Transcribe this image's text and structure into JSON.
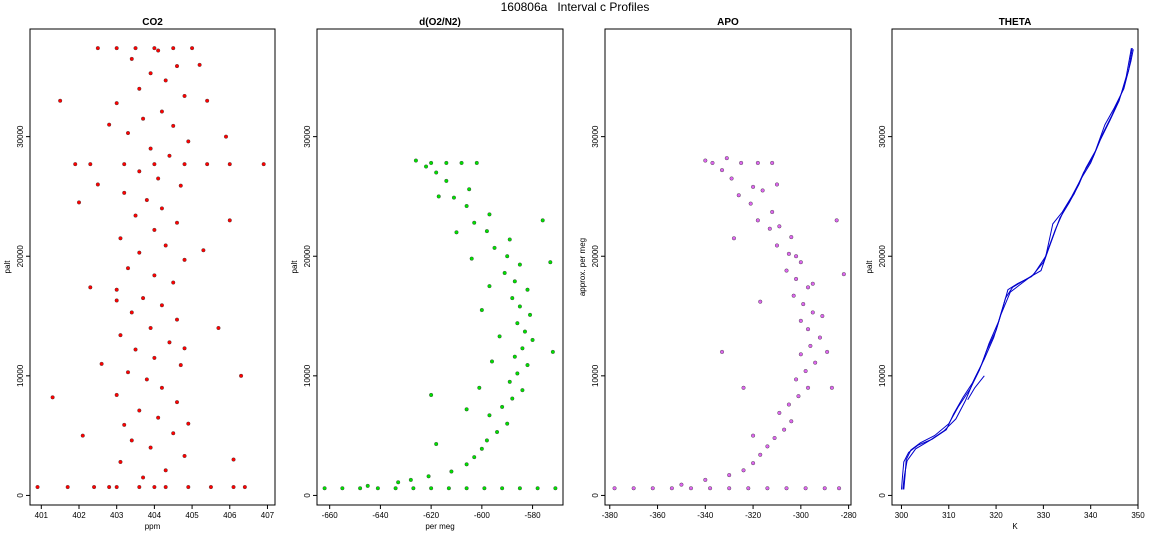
{
  "figure": {
    "title": "160806a   Interval c Profiles"
  },
  "chart_data": [
    {
      "type": "scatter",
      "title": "CO2",
      "xlabel": "ppm",
      "ylabel": "palt",
      "xlim": [
        400.7,
        407.2
      ],
      "ylim": [
        -800,
        39000
      ],
      "xticks": [
        401,
        402,
        403,
        404,
        405,
        406,
        407
      ],
      "yticks": [
        0,
        10000,
        20000,
        30000
      ],
      "color": "#ff0000",
      "points": [
        [
          403.0,
          700
        ],
        [
          403.6,
          700
        ],
        [
          404.3,
          700
        ],
        [
          404.9,
          700
        ],
        [
          402.4,
          700
        ],
        [
          405.5,
          700
        ],
        [
          401.7,
          700
        ],
        [
          406.1,
          700
        ],
        [
          402.8,
          700
        ],
        [
          404.0,
          700
        ],
        [
          400.9,
          700
        ],
        [
          406.4,
          700
        ],
        [
          403.7,
          1500
        ],
        [
          404.3,
          2100
        ],
        [
          403.1,
          2800
        ],
        [
          404.8,
          3300
        ],
        [
          403.9,
          4000
        ],
        [
          403.4,
          4600
        ],
        [
          404.5,
          5200
        ],
        [
          403.2,
          5900
        ],
        [
          404.1,
          6500
        ],
        [
          403.6,
          7100
        ],
        [
          404.6,
          7800
        ],
        [
          403.0,
          8400
        ],
        [
          404.2,
          9000
        ],
        [
          403.8,
          9700
        ],
        [
          403.3,
          10300
        ],
        [
          404.7,
          10900
        ],
        [
          404.0,
          11500
        ],
        [
          403.5,
          12200
        ],
        [
          404.4,
          12800
        ],
        [
          403.1,
          13400
        ],
        [
          403.9,
          14000
        ],
        [
          404.6,
          14700
        ],
        [
          403.4,
          15300
        ],
        [
          404.2,
          15900
        ],
        [
          403.7,
          16500
        ],
        [
          403.0,
          17200
        ],
        [
          404.5,
          17800
        ],
        [
          404.0,
          18400
        ],
        [
          403.3,
          19000
        ],
        [
          404.8,
          19700
        ],
        [
          403.6,
          20300
        ],
        [
          404.3,
          20900
        ],
        [
          403.1,
          21500
        ],
        [
          404.0,
          22200
        ],
        [
          404.6,
          22800
        ],
        [
          403.5,
          23400
        ],
        [
          404.2,
          24000
        ],
        [
          403.8,
          24700
        ],
        [
          403.2,
          25300
        ],
        [
          404.7,
          25900
        ],
        [
          404.1,
          26500
        ],
        [
          403.6,
          27100
        ],
        [
          402.3,
          27700
        ],
        [
          403.2,
          27700
        ],
        [
          404.0,
          27700
        ],
        [
          404.8,
          27700
        ],
        [
          405.4,
          27700
        ],
        [
          401.9,
          27700
        ],
        [
          406.0,
          27700
        ],
        [
          406.9,
          27700
        ],
        [
          404.4,
          28400
        ],
        [
          403.9,
          29000
        ],
        [
          404.9,
          29600
        ],
        [
          403.3,
          30300
        ],
        [
          404.5,
          30900
        ],
        [
          403.7,
          31500
        ],
        [
          404.2,
          32100
        ],
        [
          403.0,
          32800
        ],
        [
          404.8,
          33400
        ],
        [
          403.6,
          34000
        ],
        [
          404.3,
          34700
        ],
        [
          403.9,
          35300
        ],
        [
          404.6,
          35900
        ],
        [
          403.4,
          36500
        ],
        [
          404.1,
          37200
        ],
        [
          403.0,
          37400
        ],
        [
          403.5,
          37400
        ],
        [
          404.0,
          37400
        ],
        [
          404.5,
          37400
        ],
        [
          405.0,
          37400
        ],
        [
          402.5,
          37400
        ],
        [
          402.0,
          24500
        ],
        [
          402.3,
          17400
        ],
        [
          406.0,
          23000
        ],
        [
          405.7,
          14000
        ],
        [
          405.9,
          30000
        ],
        [
          401.3,
          8200
        ],
        [
          406.3,
          10000
        ],
        [
          402.1,
          5000
        ],
        [
          405.4,
          33000
        ],
        [
          401.5,
          33000
        ],
        [
          405.2,
          36000
        ],
        [
          402.6,
          11000
        ],
        [
          406.1,
          3000
        ],
        [
          403.0,
          16300
        ],
        [
          404.8,
          12300
        ],
        [
          402.8,
          31000
        ],
        [
          405.3,
          20500
        ],
        [
          402.5,
          26000
        ],
        [
          404.9,
          6000
        ]
      ]
    },
    {
      "type": "scatter",
      "title": "d(O2/N2)",
      "xlabel": "per meg",
      "ylabel": "palt",
      "xlim": [
        -665,
        -568
      ],
      "ylim": [
        -800,
        39000
      ],
      "xticks": [
        -660,
        -640,
        -620,
        -600,
        -580
      ],
      "yticks": [
        0,
        10000,
        20000,
        30000
      ],
      "color": "#00e000",
      "points": [
        [
          -662,
          600
        ],
        [
          -655,
          600
        ],
        [
          -648,
          600
        ],
        [
          -641,
          600
        ],
        [
          -634,
          600
        ],
        [
          -627,
          600
        ],
        [
          -620,
          600
        ],
        [
          -613,
          600
        ],
        [
          -606,
          600
        ],
        [
          -599,
          600
        ],
        [
          -592,
          600
        ],
        [
          -585,
          600
        ],
        [
          -578,
          600
        ],
        [
          -571,
          600
        ],
        [
          -645,
          800
        ],
        [
          -633,
          1100
        ],
        [
          -628,
          1300
        ],
        [
          -621,
          1600
        ],
        [
          -612,
          2000
        ],
        [
          -606,
          2600
        ],
        [
          -603,
          3200
        ],
        [
          -600,
          3900
        ],
        [
          -598,
          4600
        ],
        [
          -594,
          5300
        ],
        [
          -590,
          6000
        ],
        [
          -597,
          6700
        ],
        [
          -592,
          7400
        ],
        [
          -588,
          8100
        ],
        [
          -584,
          8800
        ],
        [
          -589,
          9500
        ],
        [
          -586,
          10200
        ],
        [
          -582,
          10900
        ],
        [
          -587,
          11600
        ],
        [
          -584,
          12300
        ],
        [
          -580,
          13000
        ],
        [
          -583,
          13700
        ],
        [
          -586,
          14400
        ],
        [
          -581,
          15100
        ],
        [
          -585,
          15800
        ],
        [
          -588,
          16500
        ],
        [
          -582,
          17200
        ],
        [
          -587,
          17900
        ],
        [
          -591,
          18600
        ],
        [
          -585,
          19300
        ],
        [
          -590,
          20000
        ],
        [
          -595,
          20700
        ],
        [
          -589,
          21400
        ],
        [
          -598,
          22100
        ],
        [
          -603,
          22800
        ],
        [
          -597,
          23500
        ],
        [
          -606,
          24200
        ],
        [
          -611,
          24900
        ],
        [
          -605,
          25600
        ],
        [
          -614,
          26300
        ],
        [
          -618,
          27000
        ],
        [
          -622,
          27500
        ],
        [
          -626,
          28000
        ],
        [
          -620,
          27800
        ],
        [
          -614,
          27800
        ],
        [
          -608,
          27800
        ],
        [
          -602,
          27800
        ],
        [
          -617,
          25000
        ],
        [
          -610,
          22000
        ],
        [
          -604,
          19800
        ],
        [
          -597,
          17500
        ],
        [
          -600,
          15500
        ],
        [
          -593,
          13300
        ],
        [
          -596,
          11200
        ],
        [
          -601,
          9000
        ],
        [
          -606,
          7200
        ],
        [
          -576,
          23000
        ],
        [
          -573,
          19500
        ],
        [
          -572,
          12000
        ],
        [
          -620,
          8400
        ],
        [
          -618,
          4300
        ]
      ]
    },
    {
      "type": "scatter",
      "title": "APO",
      "xlabel": "",
      "ylabel": "approx. per meg",
      "xlim": [
        -382,
        -279
      ],
      "ylim": [
        -800,
        39000
      ],
      "xticks": [
        -380,
        -360,
        -340,
        -320,
        -300,
        -280
      ],
      "yticks": [
        0,
        10000,
        20000,
        30000
      ],
      "color": "#dd66ee",
      "points": [
        [
          -378,
          600
        ],
        [
          -370,
          600
        ],
        [
          -362,
          600
        ],
        [
          -354,
          600
        ],
        [
          -346,
          600
        ],
        [
          -338,
          600
        ],
        [
          -330,
          600
        ],
        [
          -322,
          600
        ],
        [
          -314,
          600
        ],
        [
          -306,
          600
        ],
        [
          -298,
          600
        ],
        [
          -290,
          600
        ],
        [
          -284,
          600
        ],
        [
          -350,
          900
        ],
        [
          -340,
          1300
        ],
        [
          -330,
          1700
        ],
        [
          -324,
          2100
        ],
        [
          -320,
          2700
        ],
        [
          -317,
          3400
        ],
        [
          -314,
          4100
        ],
        [
          -311,
          4800
        ],
        [
          -307,
          5500
        ],
        [
          -304,
          6200
        ],
        [
          -309,
          6900
        ],
        [
          -305,
          7600
        ],
        [
          -301,
          8300
        ],
        [
          -297,
          9000
        ],
        [
          -302,
          9700
        ],
        [
          -298,
          10400
        ],
        [
          -294,
          11100
        ],
        [
          -300,
          11800
        ],
        [
          -296,
          12500
        ],
        [
          -292,
          13200
        ],
        [
          -297,
          13900
        ],
        [
          -300,
          14600
        ],
        [
          -295,
          15300
        ],
        [
          -299,
          16000
        ],
        [
          -303,
          16700
        ],
        [
          -297,
          17400
        ],
        [
          -302,
          18100
        ],
        [
          -306,
          18800
        ],
        [
          -300,
          19500
        ],
        [
          -305,
          20200
        ],
        [
          -310,
          20900
        ],
        [
          -304,
          21600
        ],
        [
          -313,
          22300
        ],
        [
          -318,
          23000
        ],
        [
          -312,
          23700
        ],
        [
          -321,
          24400
        ],
        [
          -326,
          25100
        ],
        [
          -320,
          25800
        ],
        [
          -329,
          26500
        ],
        [
          -333,
          27200
        ],
        [
          -337,
          27800
        ],
        [
          -331,
          28200
        ],
        [
          -325,
          27800
        ],
        [
          -318,
          27800
        ],
        [
          -312,
          27800
        ],
        [
          -340,
          28000
        ],
        [
          -316,
          25500
        ],
        [
          -309,
          22500
        ],
        [
          -302,
          20000
        ],
        [
          -295,
          17700
        ],
        [
          -291,
          15000
        ],
        [
          -289,
          12000
        ],
        [
          -287,
          9000
        ],
        [
          -285,
          23000
        ],
        [
          -282,
          18500
        ],
        [
          -324,
          9000
        ],
        [
          -320,
          5000
        ],
        [
          -333,
          12000
        ],
        [
          -317,
          16200
        ],
        [
          -310,
          26000
        ],
        [
          -328,
          21500
        ]
      ]
    },
    {
      "type": "line",
      "title": "THETA",
      "xlabel": "K",
      "ylabel": "palt",
      "xlim": [
        298,
        350
      ],
      "ylim": [
        -800,
        39000
      ],
      "xticks": [
        300,
        310,
        320,
        330,
        340,
        350
      ],
      "yticks": [
        0,
        10000,
        20000,
        30000
      ],
      "color": "#0000cc",
      "series": [
        {
          "x": [
            300.0,
            300.2,
            300.5,
            301.5,
            303.5,
            306.5,
            309.5,
            311.0,
            313.0,
            315.0,
            317.0,
            318.5,
            320.5,
            322.0,
            323.5,
            326.0,
            329.5,
            331.0,
            333.5,
            335.5,
            337.5,
            339.0,
            341.0,
            343.0,
            345.0,
            347.0,
            348.5,
            349.0
          ],
          "y": [
            500,
            1500,
            2800,
            3600,
            4200,
            4700,
            5500,
            6800,
            8200,
            9400,
            11000,
            12700,
            14500,
            16500,
            17400,
            18000,
            18800,
            20500,
            23200,
            24500,
            26000,
            27400,
            28800,
            31000,
            32400,
            34000,
            36300,
            37300
          ]
        },
        {
          "x": [
            300.5,
            300.8,
            301.0,
            302.0,
            304.0,
            307.0,
            310.0,
            312.0,
            314.5,
            316.5,
            318.0,
            320.0,
            321.5,
            322.5,
            324.5,
            327.5,
            330.0,
            332.5,
            334.5,
            336.5,
            338.5,
            340.5,
            342.5,
            344.5,
            346.5,
            348.0,
            348.8
          ],
          "y": [
            500,
            1800,
            3000,
            3800,
            4400,
            5000,
            6000,
            7400,
            8900,
            10500,
            12100,
            13800,
            15800,
            17200,
            17700,
            18300,
            19500,
            22200,
            24000,
            25200,
            27000,
            28300,
            30200,
            31800,
            33600,
            35500,
            37400
          ]
        },
        {
          "x": [
            300.3,
            300.6,
            301.2,
            303.0,
            306.0,
            309.0,
            311.5,
            313.5,
            315.5,
            317.5,
            319.5,
            321.0,
            323.0,
            325.0,
            328.0,
            330.5,
            332.0,
            334.0,
            336.0,
            338.0,
            340.0,
            342.0,
            344.0,
            346.0,
            347.5,
            348.6
          ],
          "y": [
            500,
            1600,
            2900,
            3900,
            4600,
            5400,
            6400,
            7900,
            9800,
            11400,
            13200,
            15100,
            17000,
            17600,
            18500,
            20000,
            22700,
            23700,
            25000,
            26500,
            27800,
            29700,
            31300,
            33000,
            35000,
            37400
          ]
        },
        {
          "x": [
            314.0,
            315.5,
            317.5
          ],
          "y": [
            8000,
            9000,
            10000
          ]
        }
      ]
    }
  ]
}
